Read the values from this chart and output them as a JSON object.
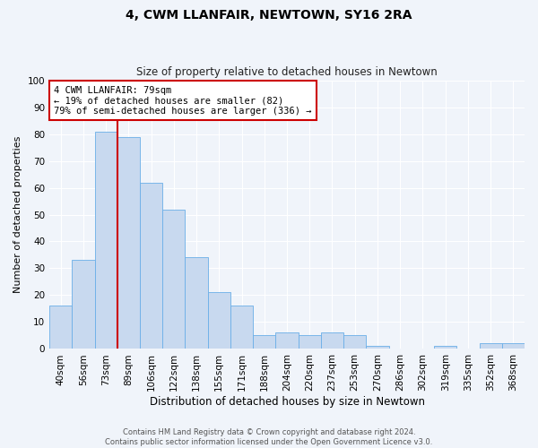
{
  "title": "4, CWM LLANFAIR, NEWTOWN, SY16 2RA",
  "subtitle": "Size of property relative to detached houses in Newtown",
  "xlabel": "Distribution of detached houses by size in Newtown",
  "ylabel": "Number of detached properties",
  "bar_labels": [
    "40sqm",
    "56sqm",
    "73sqm",
    "89sqm",
    "106sqm",
    "122sqm",
    "138sqm",
    "155sqm",
    "171sqm",
    "188sqm",
    "204sqm",
    "220sqm",
    "237sqm",
    "253sqm",
    "270sqm",
    "286sqm",
    "302sqm",
    "319sqm",
    "335sqm",
    "352sqm",
    "368sqm"
  ],
  "bar_heights": [
    16,
    33,
    81,
    79,
    62,
    52,
    34,
    21,
    16,
    5,
    6,
    5,
    6,
    5,
    1,
    0,
    0,
    1,
    0,
    2,
    2
  ],
  "bar_color": "#c8d9ef",
  "bar_edge_color": "#6aaee8",
  "ylim": [
    0,
    100
  ],
  "yticks": [
    0,
    10,
    20,
    30,
    40,
    50,
    60,
    70,
    80,
    90,
    100
  ],
  "vline_position": 2.5,
  "vline_color": "#cc0000",
  "annotation_text": "4 CWM LLANFAIR: 79sqm\n← 19% of detached houses are smaller (82)\n79% of semi-detached houses are larger (336) →",
  "annotation_box_facecolor": "#ffffff",
  "annotation_box_edgecolor": "#cc0000",
  "footer_line1": "Contains HM Land Registry data © Crown copyright and database right 2024.",
  "footer_line2": "Contains public sector information licensed under the Open Government Licence v3.0.",
  "fig_facecolor": "#f0f4fa",
  "ax_facecolor": "#f0f4fa",
  "grid_color": "#ffffff",
  "title_fontsize": 10,
  "subtitle_fontsize": 8.5,
  "ylabel_fontsize": 8,
  "xlabel_fontsize": 8.5,
  "tick_fontsize": 7.5,
  "annotation_fontsize": 7.5,
  "footer_fontsize": 6.0
}
